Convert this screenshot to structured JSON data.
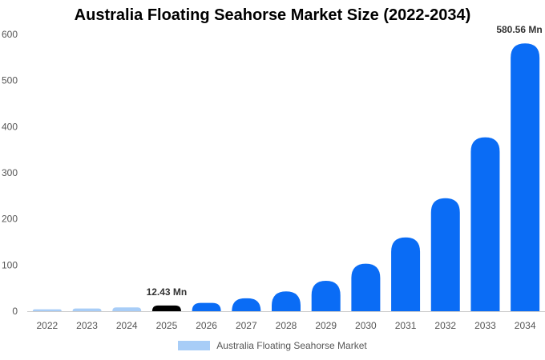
{
  "chart_data": {
    "type": "bar",
    "title": "Australia Floating Seahorse Market Size (2022-2034)",
    "xlabel": "",
    "ylabel": "",
    "categories": [
      "2022",
      "2023",
      "2024",
      "2025",
      "2026",
      "2027",
      "2028",
      "2029",
      "2030",
      "2031",
      "2032",
      "2033",
      "2034"
    ],
    "series": [
      {
        "name": "Australia Floating Seahorse Market",
        "values": [
          4.2,
          5.9,
          8.2,
          12.43,
          18,
          28,
          43,
          66,
          103,
          160,
          245,
          377,
          580.56
        ]
      }
    ],
    "ylim": [
      0,
      600
    ],
    "yticks": [
      0,
      100,
      200,
      300,
      400,
      500,
      600
    ],
    "grid": false,
    "legend": "bottom",
    "data_labels": [
      {
        "category": "2025",
        "text": "12.43 Mn"
      },
      {
        "category": "2034",
        "text": "580.56 Mn"
      }
    ],
    "colors": {
      "historic": "#a8cdf7",
      "base_year": "#000000",
      "forecast": "#0a6cf5",
      "axis": "#cccccc"
    },
    "base_year": "2025"
  }
}
